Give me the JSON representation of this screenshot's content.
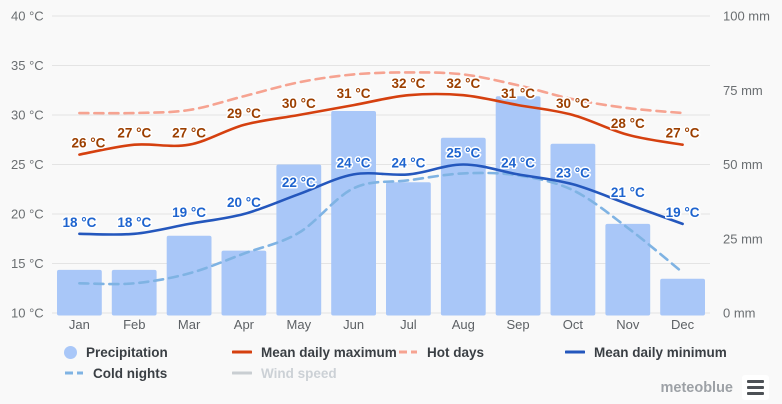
{
  "chart_data": {
    "type": "bar+line climate combo",
    "categories": [
      "Jan",
      "Feb",
      "Mar",
      "Apr",
      "May",
      "Jun",
      "Jul",
      "Aug",
      "Sep",
      "Oct",
      "Nov",
      "Dec"
    ],
    "axes": {
      "left": {
        "unit": "°C",
        "min": 10,
        "max": 40,
        "tick_step": 5,
        "tick_labels": [
          "40 °C",
          "35 °C",
          "30 °C",
          "25 °C",
          "20 °C",
          "15 °C",
          "10 °C"
        ]
      },
      "right": {
        "unit": "mm",
        "min": 0,
        "max": 100,
        "tick_step": 25,
        "tick_labels": [
          "100 mm",
          "75 mm",
          "50 mm",
          "25 mm",
          "0 mm"
        ]
      },
      "hidden_days": {
        "min": 0,
        "max": 30,
        "note": "unlabelled scale used by Hot days / Cold nights"
      }
    },
    "grid": "horizontal lines at left-axis ticks",
    "series": [
      {
        "name": "Precipitation",
        "type": "bar",
        "axis": "right",
        "unit": "mm",
        "color": "#a9c7f8",
        "values": [
          14.5,
          14.5,
          26,
          21,
          50,
          68,
          44,
          59,
          73,
          57,
          30,
          11.5
        ]
      },
      {
        "name": "Mean daily maximum",
        "type": "line",
        "axis": "left",
        "unit": "°C",
        "color": "#d5400f",
        "label_color": "#9c3f00",
        "first_label_dx": 9,
        "values": [
          26,
          27,
          27,
          29,
          30,
          31,
          32,
          32,
          31,
          30,
          28,
          27
        ],
        "point_labels": [
          "26 °C",
          "27 °C",
          "27 °C",
          "29 °C",
          "30 °C",
          "31 °C",
          "32 °C",
          "32 °C",
          "31 °C",
          "30 °C",
          "28 °C",
          "27 °C"
        ]
      },
      {
        "name": "Hot days",
        "type": "dashed-line",
        "axis": "hidden_days",
        "unit": "days",
        "color": "#f6a391",
        "values": [
          20.2,
          20.2,
          20.5,
          21.9,
          23.3,
          24.1,
          24.3,
          24.1,
          23.0,
          21.6,
          20.7,
          20.2
        ]
      },
      {
        "name": "Mean daily minimum",
        "type": "line",
        "axis": "left",
        "unit": "°C",
        "color": "#2457bd",
        "label_color": "#1e64cf",
        "first_label_dx": 0,
        "values": [
          18,
          18,
          19,
          20,
          22,
          24,
          24,
          25,
          24,
          23,
          21,
          19
        ],
        "point_labels": [
          "18 °C",
          "18 °C",
          "19 °C",
          "20 °C",
          "22 °C",
          "24 °C",
          "24 °C",
          "25 °C",
          "24 °C",
          "23 °C",
          "21 °C",
          "19 °C"
        ]
      },
      {
        "name": "Cold nights",
        "type": "dashed-line",
        "axis": "hidden_days",
        "unit": "days",
        "color": "#7fb3e3",
        "values": [
          3.0,
          3.0,
          4.0,
          6.0,
          8.1,
          12.6,
          13.4,
          14.1,
          13.9,
          12.4,
          8.6,
          4.1
        ]
      },
      {
        "name": "Wind speed",
        "type": "line",
        "axis": "left",
        "unit": "",
        "color": "#c9ced2",
        "disabled": true,
        "values": []
      }
    ],
    "legend": {
      "position": "bottom",
      "rows": [
        [
          0,
          1,
          2,
          3
        ],
        [
          4,
          5
        ]
      ]
    }
  },
  "footer": {
    "brand": "meteoblue"
  }
}
